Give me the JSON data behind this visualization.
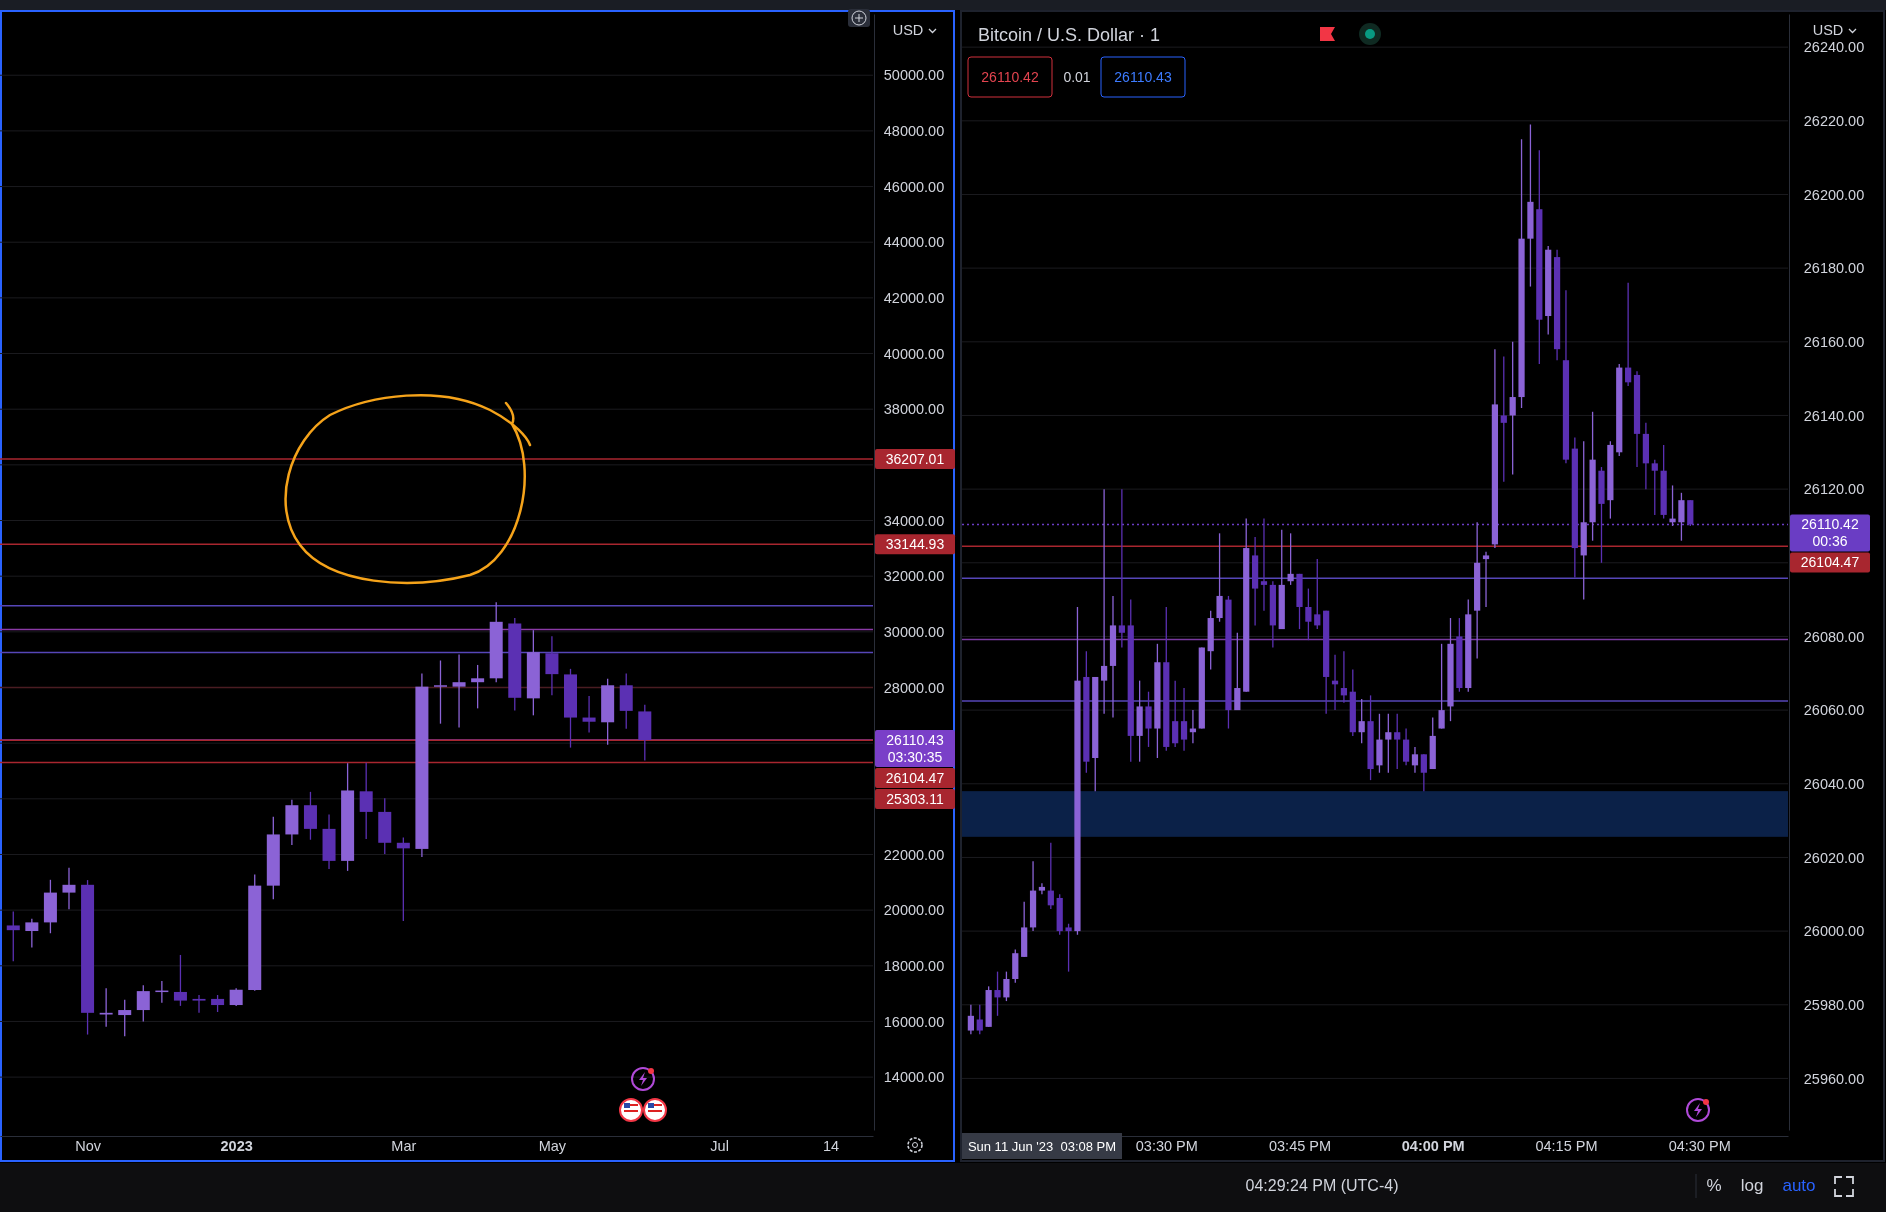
{
  "chart_data": [
    {
      "type": "candlestick",
      "ylabel": "USD",
      "grid": "y",
      "x": [
        "2022-10-10",
        "2022-10-17",
        "2022-10-24",
        "2022-10-31",
        "2022-11-07",
        "2022-11-14",
        "2022-11-21",
        "2022-11-28",
        "2022-12-05",
        "2022-12-12",
        "2022-12-19",
        "2022-12-26",
        "2023-01-02",
        "2023-01-09",
        "2023-01-16",
        "2023-01-23",
        "2023-01-30",
        "2023-02-06",
        "2023-02-13",
        "2023-02-20",
        "2023-02-27",
        "2023-03-06",
        "2023-03-13",
        "2023-03-20",
        "2023-03-27",
        "2023-04-03",
        "2023-04-10",
        "2023-04-17",
        "2023-04-24",
        "2023-05-01",
        "2023-05-08",
        "2023-05-15",
        "2023-05-22",
        "2023-05-29",
        "2023-06-05"
      ],
      "ohlc": [
        [
          19450,
          19950,
          18160,
          19280
        ],
        [
          19250,
          19690,
          18660,
          19560
        ],
        [
          19560,
          21090,
          19170,
          20630
        ],
        [
          20630,
          21520,
          20030,
          20910
        ],
        [
          20910,
          21080,
          15530,
          16310
        ],
        [
          16250,
          17190,
          15810,
          16310
        ],
        [
          16230,
          16780,
          15470,
          16410
        ],
        [
          16410,
          17300,
          16000,
          17090
        ],
        [
          17090,
          17450,
          16670,
          17110
        ],
        [
          17060,
          18390,
          16560,
          16750
        ],
        [
          16810,
          16950,
          16310,
          16750
        ],
        [
          16810,
          16950,
          16340,
          16590
        ],
        [
          16590,
          17190,
          16560,
          17140
        ],
        [
          17130,
          21280,
          17100,
          20880
        ],
        [
          20880,
          23360,
          20390,
          22720
        ],
        [
          22720,
          23970,
          22340,
          23770
        ],
        [
          23770,
          24250,
          22530,
          22920
        ],
        [
          22920,
          23440,
          21480,
          21770
        ],
        [
          21770,
          25280,
          21410,
          24300
        ],
        [
          24270,
          25300,
          22560,
          23530
        ],
        [
          23530,
          24020,
          22020,
          22420
        ],
        [
          22420,
          22610,
          19610,
          22220
        ],
        [
          22200,
          28500,
          21910,
          28030
        ],
        [
          28030,
          28970,
          26700,
          28080
        ],
        [
          28030,
          29190,
          26560,
          28190
        ],
        [
          28190,
          28810,
          27250,
          28330
        ],
        [
          28330,
          31060,
          28190,
          30360
        ],
        [
          30300,
          30500,
          27170,
          27630
        ],
        [
          27610,
          30060,
          27000,
          29270
        ],
        [
          29230,
          29840,
          27720,
          28480
        ],
        [
          28470,
          28670,
          25840,
          26920
        ],
        [
          26920,
          27690,
          26380,
          26770
        ],
        [
          26750,
          28310,
          25940,
          28080
        ],
        [
          28080,
          28500,
          26520,
          27160
        ],
        [
          27140,
          27380,
          25380,
          26110.43
        ]
      ],
      "colors": [
        "#5b30b3",
        "#8b63d6",
        "#8b63d6",
        "#8b63d6",
        "#5b30b3",
        "#8b63d6",
        "#8b63d6",
        "#8b63d6",
        "#8b63d6",
        "#5b30b3",
        "#5b30b3",
        "#5b30b3",
        "#8b63d6",
        "#8b63d6",
        "#8b63d6",
        "#8b63d6",
        "#5b30b3",
        "#5b30b3",
        "#8b63d6",
        "#5b30b3",
        "#5b30b3",
        "#5b30b3",
        "#8b63d6",
        "#8b63d6",
        "#8b63d6",
        "#8b63d6",
        "#8b63d6",
        "#5b30b3",
        "#8b63d6",
        "#5b30b3",
        "#5b30b3",
        "#5b30b3",
        "#8b63d6",
        "#5b30b3",
        "#5b30b3"
      ],
      "xlim": [
        "2022-10-05",
        "2023-08-30"
      ],
      "xticks": [
        {
          "value": "2022-11-07",
          "label": "Nov"
        },
        {
          "value": "2023-01-02",
          "label": "2023"
        },
        {
          "value": "2023-03-06",
          "label": "Mar"
        },
        {
          "value": "2023-05-01",
          "label": "May"
        },
        {
          "value": "2023-07-03",
          "label": "Jul"
        },
        {
          "value": "2023-08-14",
          "label": "14"
        }
      ],
      "ylim": [
        12100,
        52200
      ],
      "yticks": [
        {
          "value": 14000,
          "label": "14000.00"
        },
        {
          "value": 16000,
          "label": "16000.00"
        },
        {
          "value": 18000,
          "label": "18000.00"
        },
        {
          "value": 20000,
          "label": "20000.00"
        },
        {
          "value": 22000,
          "label": "22000.00"
        },
        {
          "value": 24000,
          "label": null
        },
        {
          "value": 26000,
          "label": null
        },
        {
          "value": 28000,
          "label": "28000.00"
        },
        {
          "value": 30000,
          "label": "30000.00"
        },
        {
          "value": 32000,
          "label": "32000.00"
        },
        {
          "value": 34000,
          "label": "34000.00"
        },
        {
          "value": 36000,
          "label": null
        },
        {
          "value": 38000,
          "label": "38000.00"
        },
        {
          "value": 40000,
          "label": "40000.00"
        },
        {
          "value": 42000,
          "label": "42000.00"
        },
        {
          "value": 44000,
          "label": "44000.00"
        },
        {
          "value": 46000,
          "label": "46000.00"
        },
        {
          "value": 48000,
          "label": "48000.00"
        },
        {
          "value": 50000,
          "label": "50000.00"
        }
      ],
      "ref_lines": [
        {
          "axis": "y",
          "value": 36207.01,
          "label": "36207.01",
          "color": "#a8262f"
        },
        {
          "axis": "y",
          "value": 33144.93,
          "label": "33144.93",
          "color": "#a8262f"
        },
        {
          "axis": "y",
          "value": 30940,
          "color": "#5646b8"
        },
        {
          "axis": "y",
          "value": 30080,
          "color": "#8a3aa6"
        },
        {
          "axis": "y",
          "value": 29260,
          "color": "#5646b8"
        },
        {
          "axis": "y",
          "value": 28000,
          "color": "#4a1c22"
        },
        {
          "axis": "y",
          "value": 26110.43,
          "label": "26110.43",
          "color": "#7a3fc8"
        },
        {
          "axis": "y",
          "value": 26104.47,
          "label": "26104.47",
          "color": "#a8262f"
        },
        {
          "axis": "y",
          "value": 25303.11,
          "label": "25303.11",
          "color": "#a8262f"
        }
      ],
      "annotations": [
        "03:30:35"
      ]
    },
    {
      "type": "candlestick",
      "title": "Bitcoin / U.S. Dollar · 1",
      "ylabel": "USD",
      "grid": "y",
      "x": [
        "2023-06-11T15:08",
        "2023-06-11T15:09",
        "2023-06-11T15:10",
        "2023-06-11T15:11",
        "2023-06-11T15:12",
        "2023-06-11T15:13",
        "2023-06-11T15:14",
        "2023-06-11T15:15",
        "2023-06-11T15:16",
        "2023-06-11T15:17",
        "2023-06-11T15:18",
        "2023-06-11T15:19",
        "2023-06-11T15:20",
        "2023-06-11T15:21",
        "2023-06-11T15:22",
        "2023-06-11T15:23",
        "2023-06-11T15:24",
        "2023-06-11T15:25",
        "2023-06-11T15:26",
        "2023-06-11T15:27",
        "2023-06-11T15:28",
        "2023-06-11T15:29",
        "2023-06-11T15:30",
        "2023-06-11T15:31",
        "2023-06-11T15:32",
        "2023-06-11T15:33",
        "2023-06-11T15:34",
        "2023-06-11T15:35",
        "2023-06-11T15:36",
        "2023-06-11T15:37",
        "2023-06-11T15:38",
        "2023-06-11T15:39",
        "2023-06-11T15:40",
        "2023-06-11T15:41",
        "2023-06-11T15:42",
        "2023-06-11T15:43",
        "2023-06-11T15:44",
        "2023-06-11T15:45",
        "2023-06-11T15:46",
        "2023-06-11T15:47",
        "2023-06-11T15:48",
        "2023-06-11T15:49",
        "2023-06-11T15:50",
        "2023-06-11T15:51",
        "2023-06-11T15:52",
        "2023-06-11T15:53",
        "2023-06-11T15:54",
        "2023-06-11T15:55",
        "2023-06-11T15:56",
        "2023-06-11T15:57",
        "2023-06-11T15:58",
        "2023-06-11T15:59",
        "2023-06-11T16:00",
        "2023-06-11T16:01",
        "2023-06-11T16:02",
        "2023-06-11T16:03",
        "2023-06-11T16:04",
        "2023-06-11T16:05",
        "2023-06-11T16:06",
        "2023-06-11T16:07",
        "2023-06-11T16:08",
        "2023-06-11T16:09",
        "2023-06-11T16:10",
        "2023-06-11T16:11",
        "2023-06-11T16:12",
        "2023-06-11T16:13",
        "2023-06-11T16:14",
        "2023-06-11T16:15",
        "2023-06-11T16:16",
        "2023-06-11T16:17",
        "2023-06-11T16:18",
        "2023-06-11T16:19",
        "2023-06-11T16:20",
        "2023-06-11T16:21",
        "2023-06-11T16:22",
        "2023-06-11T16:23",
        "2023-06-11T16:24",
        "2023-06-11T16:25",
        "2023-06-11T16:26",
        "2023-06-11T16:27",
        "2023-06-11T16:28",
        "2023-06-11T16:29"
      ],
      "ohlc": [
        [
          25973,
          25980,
          25972,
          25977
        ],
        [
          25976,
          25980,
          25972,
          25973
        ],
        [
          25974,
          25985,
          25974,
          25984
        ],
        [
          25984,
          25989,
          25977,
          25982
        ],
        [
          25982,
          25989,
          25981,
          25987
        ],
        [
          25987,
          25995,
          25986,
          25994
        ],
        [
          25993,
          26008,
          25993,
          26001
        ],
        [
          26001,
          26019,
          26000,
          26011
        ],
        [
          26011,
          26013,
          26010,
          26012
        ],
        [
          26011,
          26024,
          26006,
          26007
        ],
        [
          26009,
          26010,
          25999,
          26000
        ],
        [
          26001,
          26002,
          25989,
          26000
        ],
        [
          26000,
          26088,
          25999,
          26068
        ],
        [
          26069,
          26076,
          26043,
          26046
        ],
        [
          26047,
          26069,
          26038,
          26069
        ],
        [
          26068,
          26120,
          26059,
          26072
        ],
        [
          26072,
          26091,
          26058,
          26083
        ],
        [
          26083,
          26120,
          26077,
          26081
        ],
        [
          26083,
          26090,
          26046,
          26053
        ],
        [
          26053,
          26068,
          26046,
          26061
        ],
        [
          26061,
          26065,
          26050,
          26055
        ],
        [
          26055,
          26078,
          26047,
          26073
        ],
        [
          26073,
          26088,
          26049,
          26050
        ],
        [
          26057,
          26068,
          26050,
          26051
        ],
        [
          26057,
          26066,
          26049,
          26052
        ],
        [
          26054,
          26060,
          26051,
          26055
        ],
        [
          26055,
          26077,
          26055,
          26077
        ],
        [
          26076,
          26087,
          26071,
          26085
        ],
        [
          26085,
          26108,
          26084,
          26091
        ],
        [
          26090,
          26091,
          26055,
          26060
        ],
        [
          26060,
          26081,
          26060,
          26066
        ],
        [
          26065,
          26112,
          26065,
          26104
        ],
        [
          26102,
          26107,
          26083,
          26093
        ],
        [
          26095,
          26112,
          26087,
          26094
        ],
        [
          26094,
          26095,
          26077,
          26083
        ],
        [
          26082,
          26109,
          26082,
          26094
        ],
        [
          26095,
          26108,
          26094,
          26097
        ],
        [
          26097,
          26097,
          26082,
          26088
        ],
        [
          26088,
          26093,
          26079,
          26084
        ],
        [
          26086,
          26101,
          26082,
          26083
        ],
        [
          26087,
          26087,
          26059,
          26069
        ],
        [
          26068,
          26075,
          26060,
          26067
        ],
        [
          26066,
          26076,
          26062,
          26064
        ],
        [
          26065,
          26071,
          26053,
          26054
        ],
        [
          26054,
          26063,
          26051,
          26057
        ],
        [
          26057,
          26064,
          26041,
          26044
        ],
        [
          26045,
          26059,
          26043,
          26052
        ],
        [
          26052,
          26059,
          26043,
          26054
        ],
        [
          26054,
          26059,
          26044,
          26052
        ],
        [
          26052,
          26055,
          26045,
          26046
        ],
        [
          26045,
          26050,
          26043,
          26048
        ],
        [
          26048,
          26048,
          26038,
          26043
        ],
        [
          26044,
          26058,
          26044,
          26053
        ],
        [
          26055,
          26078,
          26055,
          26060
        ],
        [
          26061,
          26085,
          26057,
          26078
        ],
        [
          26080,
          26085,
          26065,
          26066
        ],
        [
          26066,
          26090,
          26065,
          26086
        ],
        [
          26087,
          26111,
          26074,
          26100
        ],
        [
          26101,
          26103,
          26088,
          26102
        ],
        [
          26105,
          26158,
          26104,
          26143
        ],
        [
          26140,
          26156,
          26122,
          26138
        ],
        [
          26140,
          26160,
          26124,
          26145
        ],
        [
          26145,
          26215,
          26142,
          26188
        ],
        [
          26188,
          26219,
          26175,
          26198
        ],
        [
          26196,
          26212,
          26154,
          26166
        ],
        [
          26167,
          26186,
          26162,
          26185
        ],
        [
          26183,
          26185,
          26155,
          26158
        ],
        [
          26155,
          26174,
          26127,
          26128
        ],
        [
          26131,
          26134,
          26096,
          26104
        ],
        [
          26102,
          26133,
          26090,
          26111
        ],
        [
          26111,
          26141,
          26106,
          26128
        ],
        [
          26125,
          26126,
          26100,
          26116
        ],
        [
          26117,
          26133,
          26112,
          26132
        ],
        [
          26130,
          26154,
          26129,
          26153
        ],
        [
          26153,
          26176,
          26148,
          26149
        ],
        [
          26151,
          26152,
          26126,
          26135
        ],
        [
          26135,
          26138,
          26120,
          26127
        ],
        [
          26127,
          26128,
          26113,
          26125
        ],
        [
          26125,
          26132,
          26112,
          26113
        ],
        [
          26111,
          26121,
          26110,
          26112
        ],
        [
          26111,
          26119,
          26106,
          26117
        ],
        [
          26117,
          26117,
          26110,
          26110.42
        ]
      ],
      "colors": [
        "#8b63d6",
        "#5b30b3",
        "#8b63d6",
        "#5b30b3",
        "#8b63d6",
        "#8b63d6",
        "#8b63d6",
        "#8b63d6",
        "#8b63d6",
        "#5b30b3",
        "#5b30b3",
        "#5b30b3",
        "#8b63d6",
        "#5b30b3",
        "#8b63d6",
        "#8b63d6",
        "#8b63d6",
        "#5b30b3",
        "#5b30b3",
        "#8b63d6",
        "#5b30b3",
        "#8b63d6",
        "#5b30b3",
        "#5b30b3",
        "#5b30b3",
        "#8b63d6",
        "#8b63d6",
        "#8b63d6",
        "#8b63d6",
        "#5b30b3",
        "#8b63d6",
        "#8b63d6",
        "#5b30b3",
        "#5b30b3",
        "#5b30b3",
        "#8b63d6",
        "#8b63d6",
        "#5b30b3",
        "#5b30b3",
        "#5b30b3",
        "#5b30b3",
        "#5b30b3",
        "#5b30b3",
        "#5b30b3",
        "#8b63d6",
        "#5b30b3",
        "#8b63d6",
        "#8b63d6",
        "#5b30b3",
        "#5b30b3",
        "#8b63d6",
        "#5b30b3",
        "#8b63d6",
        "#8b63d6",
        "#8b63d6",
        "#5b30b3",
        "#8b63d6",
        "#8b63d6",
        "#8b63d6",
        "#8b63d6",
        "#5b30b3",
        "#8b63d6",
        "#8b63d6",
        "#8b63d6",
        "#5b30b3",
        "#8b63d6",
        "#5b30b3",
        "#5b30b3",
        "#5b30b3",
        "#8b63d6",
        "#8b63d6",
        "#5b30b3",
        "#8b63d6",
        "#8b63d6",
        "#5b30b3",
        "#5b30b3",
        "#5b30b3",
        "#5b30b3",
        "#5b30b3",
        "#8b63d6",
        "#8b63d6",
        "#5b30b3"
      ],
      "xlim": [
        "2023-06-11T15:07",
        "2023-06-11T16:40"
      ],
      "xticks": [
        {
          "value": "2023-06-11T15:30",
          "label": "03:30 PM"
        },
        {
          "value": "2023-06-11T15:45",
          "label": "03:45 PM"
        },
        {
          "value": "2023-06-11T16:00",
          "label": "04:00 PM"
        },
        {
          "value": "2023-06-11T16:15",
          "label": "04:15 PM"
        },
        {
          "value": "2023-06-11T16:30",
          "label": "04:30 PM"
        }
      ],
      "ylim": [
        25946,
        26249
      ],
      "yticks": [
        {
          "value": 25960,
          "label": "25960.00"
        },
        {
          "value": 25980,
          "label": "25980.00"
        },
        {
          "value": 26000,
          "label": "26000.00"
        },
        {
          "value": 26020,
          "label": "26020.00"
        },
        {
          "value": 26040,
          "label": "26040.00"
        },
        {
          "value": 26060,
          "label": "26060.00"
        },
        {
          "value": 26080,
          "label": "26080.00"
        },
        {
          "value": 26100,
          "label": null
        },
        {
          "value": 26120,
          "label": "26120.00"
        },
        {
          "value": 26140,
          "label": "26140.00"
        },
        {
          "value": 26160,
          "label": "26160.00"
        },
        {
          "value": 26180,
          "label": "26180.00"
        },
        {
          "value": 26200,
          "label": "26200.00"
        },
        {
          "value": 26220,
          "label": "26220.00"
        },
        {
          "value": 26240,
          "label": "26240.00"
        }
      ],
      "bands": [
        {
          "axis": "y",
          "from": 26025.6,
          "to": 26038,
          "color": "#0b2148"
        }
      ],
      "ref_lines": [
        {
          "axis": "y",
          "value": 26110.42,
          "label": "26110.42",
          "color": "#6a3dc4",
          "line_style": "dotted"
        },
        {
          "axis": "y",
          "value": 26104.47,
          "label": "26104.47",
          "color": "#a8262f"
        },
        {
          "axis": "y",
          "value": 26095.8,
          "color": "#5646b8"
        },
        {
          "axis": "y",
          "value": 26079.2,
          "color": "#7a3aa0"
        },
        {
          "axis": "y",
          "value": 26062.5,
          "color": "#5646b8"
        }
      ],
      "annotations": [
        "26110.42",
        "0.01",
        "26110.43",
        "04:29:24 PM (UTC-4)",
        "%",
        "log",
        "auto",
        "00:36",
        "Sun 11 Jun '23  03:08 PM"
      ]
    }
  ]
}
